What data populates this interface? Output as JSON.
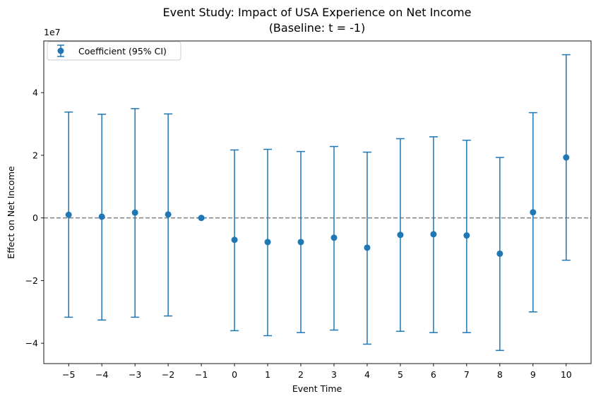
{
  "chart_data": {
    "type": "scatter",
    "title": "Event Study: Impact of USA Experience on Net Income",
    "subtitle": "(Baseline: t = -1)",
    "xlabel": "Event Time",
    "ylabel": "Effect on Net Income",
    "y_offset_label": "1e7",
    "xlim": [
      -5.75,
      10.75
    ],
    "ylim": [
      -46500000,
      56500000
    ],
    "x_ticks": [
      -5,
      -4,
      -3,
      -2,
      -1,
      0,
      1,
      2,
      3,
      4,
      5,
      6,
      7,
      8,
      9,
      10
    ],
    "x_tick_labels": [
      "−5",
      "−4",
      "−3",
      "−2",
      "−1",
      "0",
      "1",
      "2",
      "3",
      "4",
      "5",
      "6",
      "7",
      "8",
      "9",
      "10"
    ],
    "y_ticks": [
      -40000000,
      -20000000,
      0,
      20000000,
      40000000
    ],
    "y_tick_labels": [
      "−4",
      "−2",
      "0",
      "2",
      "4"
    ],
    "reference_line": {
      "y": 0,
      "style": "dashed",
      "color": "#808080"
    },
    "grid": false,
    "legend_position": "top-left",
    "series": [
      {
        "name": "Coefficient (95% CI)",
        "color": "#1f77b4",
        "marker": "circle",
        "x": [
          -5,
          -4,
          -3,
          -2,
          -1,
          0,
          1,
          2,
          3,
          4,
          5,
          6,
          7,
          8,
          9,
          10
        ],
        "y": [
          1000000,
          400000,
          1700000,
          1100000,
          0,
          -7000000,
          -7700000,
          -7700000,
          -6300000,
          -9500000,
          -5400000,
          -5200000,
          -5600000,
          -11400000,
          1800000,
          19300000
        ],
        "ci_lower": [
          -31700000,
          -32600000,
          -31700000,
          -31300000,
          0,
          -36000000,
          -37600000,
          -36600000,
          -35800000,
          -40300000,
          -36200000,
          -36600000,
          -36600000,
          -42300000,
          -30000000,
          -13500000
        ],
        "ci_upper": [
          33800000,
          33100000,
          34900000,
          33200000,
          0,
          21700000,
          21900000,
          21200000,
          22800000,
          21000000,
          25300000,
          25900000,
          24800000,
          19300000,
          33600000,
          52100000
        ]
      }
    ]
  }
}
